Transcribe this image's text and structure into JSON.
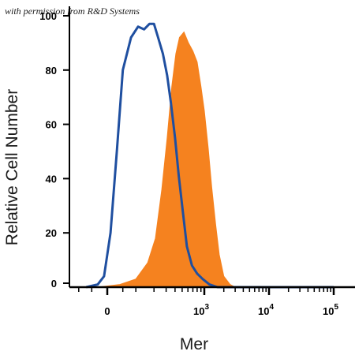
{
  "credit": "with permission from R&D Systems",
  "chart_data": {
    "type": "area",
    "title": "",
    "xlabel": "Mer",
    "ylabel": "Relative Cell Number",
    "x_axis": {
      "scale": "biexponential",
      "ticks": [
        {
          "value": 0,
          "label": "0"
        },
        {
          "value": 1000,
          "label": "10",
          "exp": "3"
        },
        {
          "value": 10000,
          "label": "10",
          "exp": "4"
        },
        {
          "value": 100000,
          "label": "10",
          "exp": "5"
        }
      ]
    },
    "ylim": [
      0,
      100
    ],
    "yticks": [
      0,
      20,
      40,
      60,
      80,
      100
    ],
    "grid": false,
    "legend": "none",
    "series": [
      {
        "style": "outline",
        "color": "#1f4fa0",
        "points": [
          [
            -70,
            0
          ],
          [
            -30,
            1
          ],
          [
            -10,
            4
          ],
          [
            10,
            20
          ],
          [
            30,
            50
          ],
          [
            50,
            80
          ],
          [
            80,
            92
          ],
          [
            110,
            96
          ],
          [
            140,
            95
          ],
          [
            170,
            97
          ],
          [
            200,
            97
          ],
          [
            230,
            92
          ],
          [
            270,
            86
          ],
          [
            310,
            78
          ],
          [
            350,
            68
          ],
          [
            400,
            55
          ],
          [
            450,
            41
          ],
          [
            510,
            28
          ],
          [
            580,
            15
          ],
          [
            680,
            8
          ],
          [
            800,
            5
          ],
          [
            950,
            3
          ],
          [
            1200,
            1
          ],
          [
            1600,
            0
          ],
          [
            100000,
            0
          ]
        ]
      },
      {
        "style": "filled",
        "color": "#f5821f",
        "points": [
          [
            -30,
            0
          ],
          [
            40,
            1
          ],
          [
            100,
            3
          ],
          [
            160,
            9
          ],
          [
            210,
            18
          ],
          [
            260,
            36
          ],
          [
            310,
            55
          ],
          [
            360,
            74
          ],
          [
            410,
            86
          ],
          [
            460,
            92
          ],
          [
            530,
            94
          ],
          [
            610,
            90
          ],
          [
            700,
            87
          ],
          [
            800,
            83
          ],
          [
            900,
            74
          ],
          [
            1000,
            65
          ],
          [
            1150,
            51
          ],
          [
            1300,
            37
          ],
          [
            1500,
            23
          ],
          [
            1700,
            12
          ],
          [
            2000,
            4
          ],
          [
            2500,
            1
          ],
          [
            3000,
            0
          ],
          [
            100000,
            0
          ]
        ]
      }
    ]
  }
}
